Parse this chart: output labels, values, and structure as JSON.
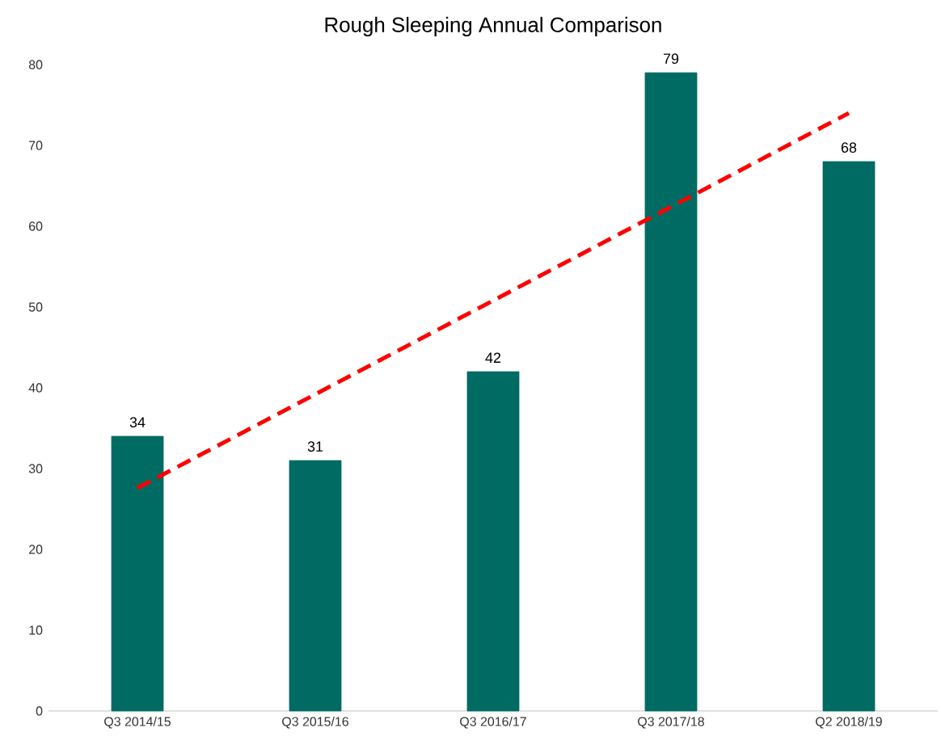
{
  "chart_data": {
    "type": "bar",
    "title": "Rough Sleeping Annual Comparison",
    "categories": [
      "Q3 2014/15",
      "Q3 2015/16",
      "Q3 2016/17",
      "Q3 2017/18",
      "Q2 2018/19"
    ],
    "series": [
      {
        "color": "#006b63",
        "values": [
          34,
          31,
          42,
          79,
          68
        ],
        "value_labels": [
          "34",
          "31",
          "42",
          "79",
          "68"
        ]
      },
      {
        "type": "line",
        "color": "#ff0000",
        "line_style": "dashed",
        "values": [
          27.6,
          39.2,
          50.8,
          62.4,
          74
        ]
      }
    ],
    "ylim": [
      0,
      80
    ],
    "yticks": [
      0,
      10,
      20,
      30,
      40,
      50,
      60,
      70,
      80
    ],
    "grid": false
  }
}
